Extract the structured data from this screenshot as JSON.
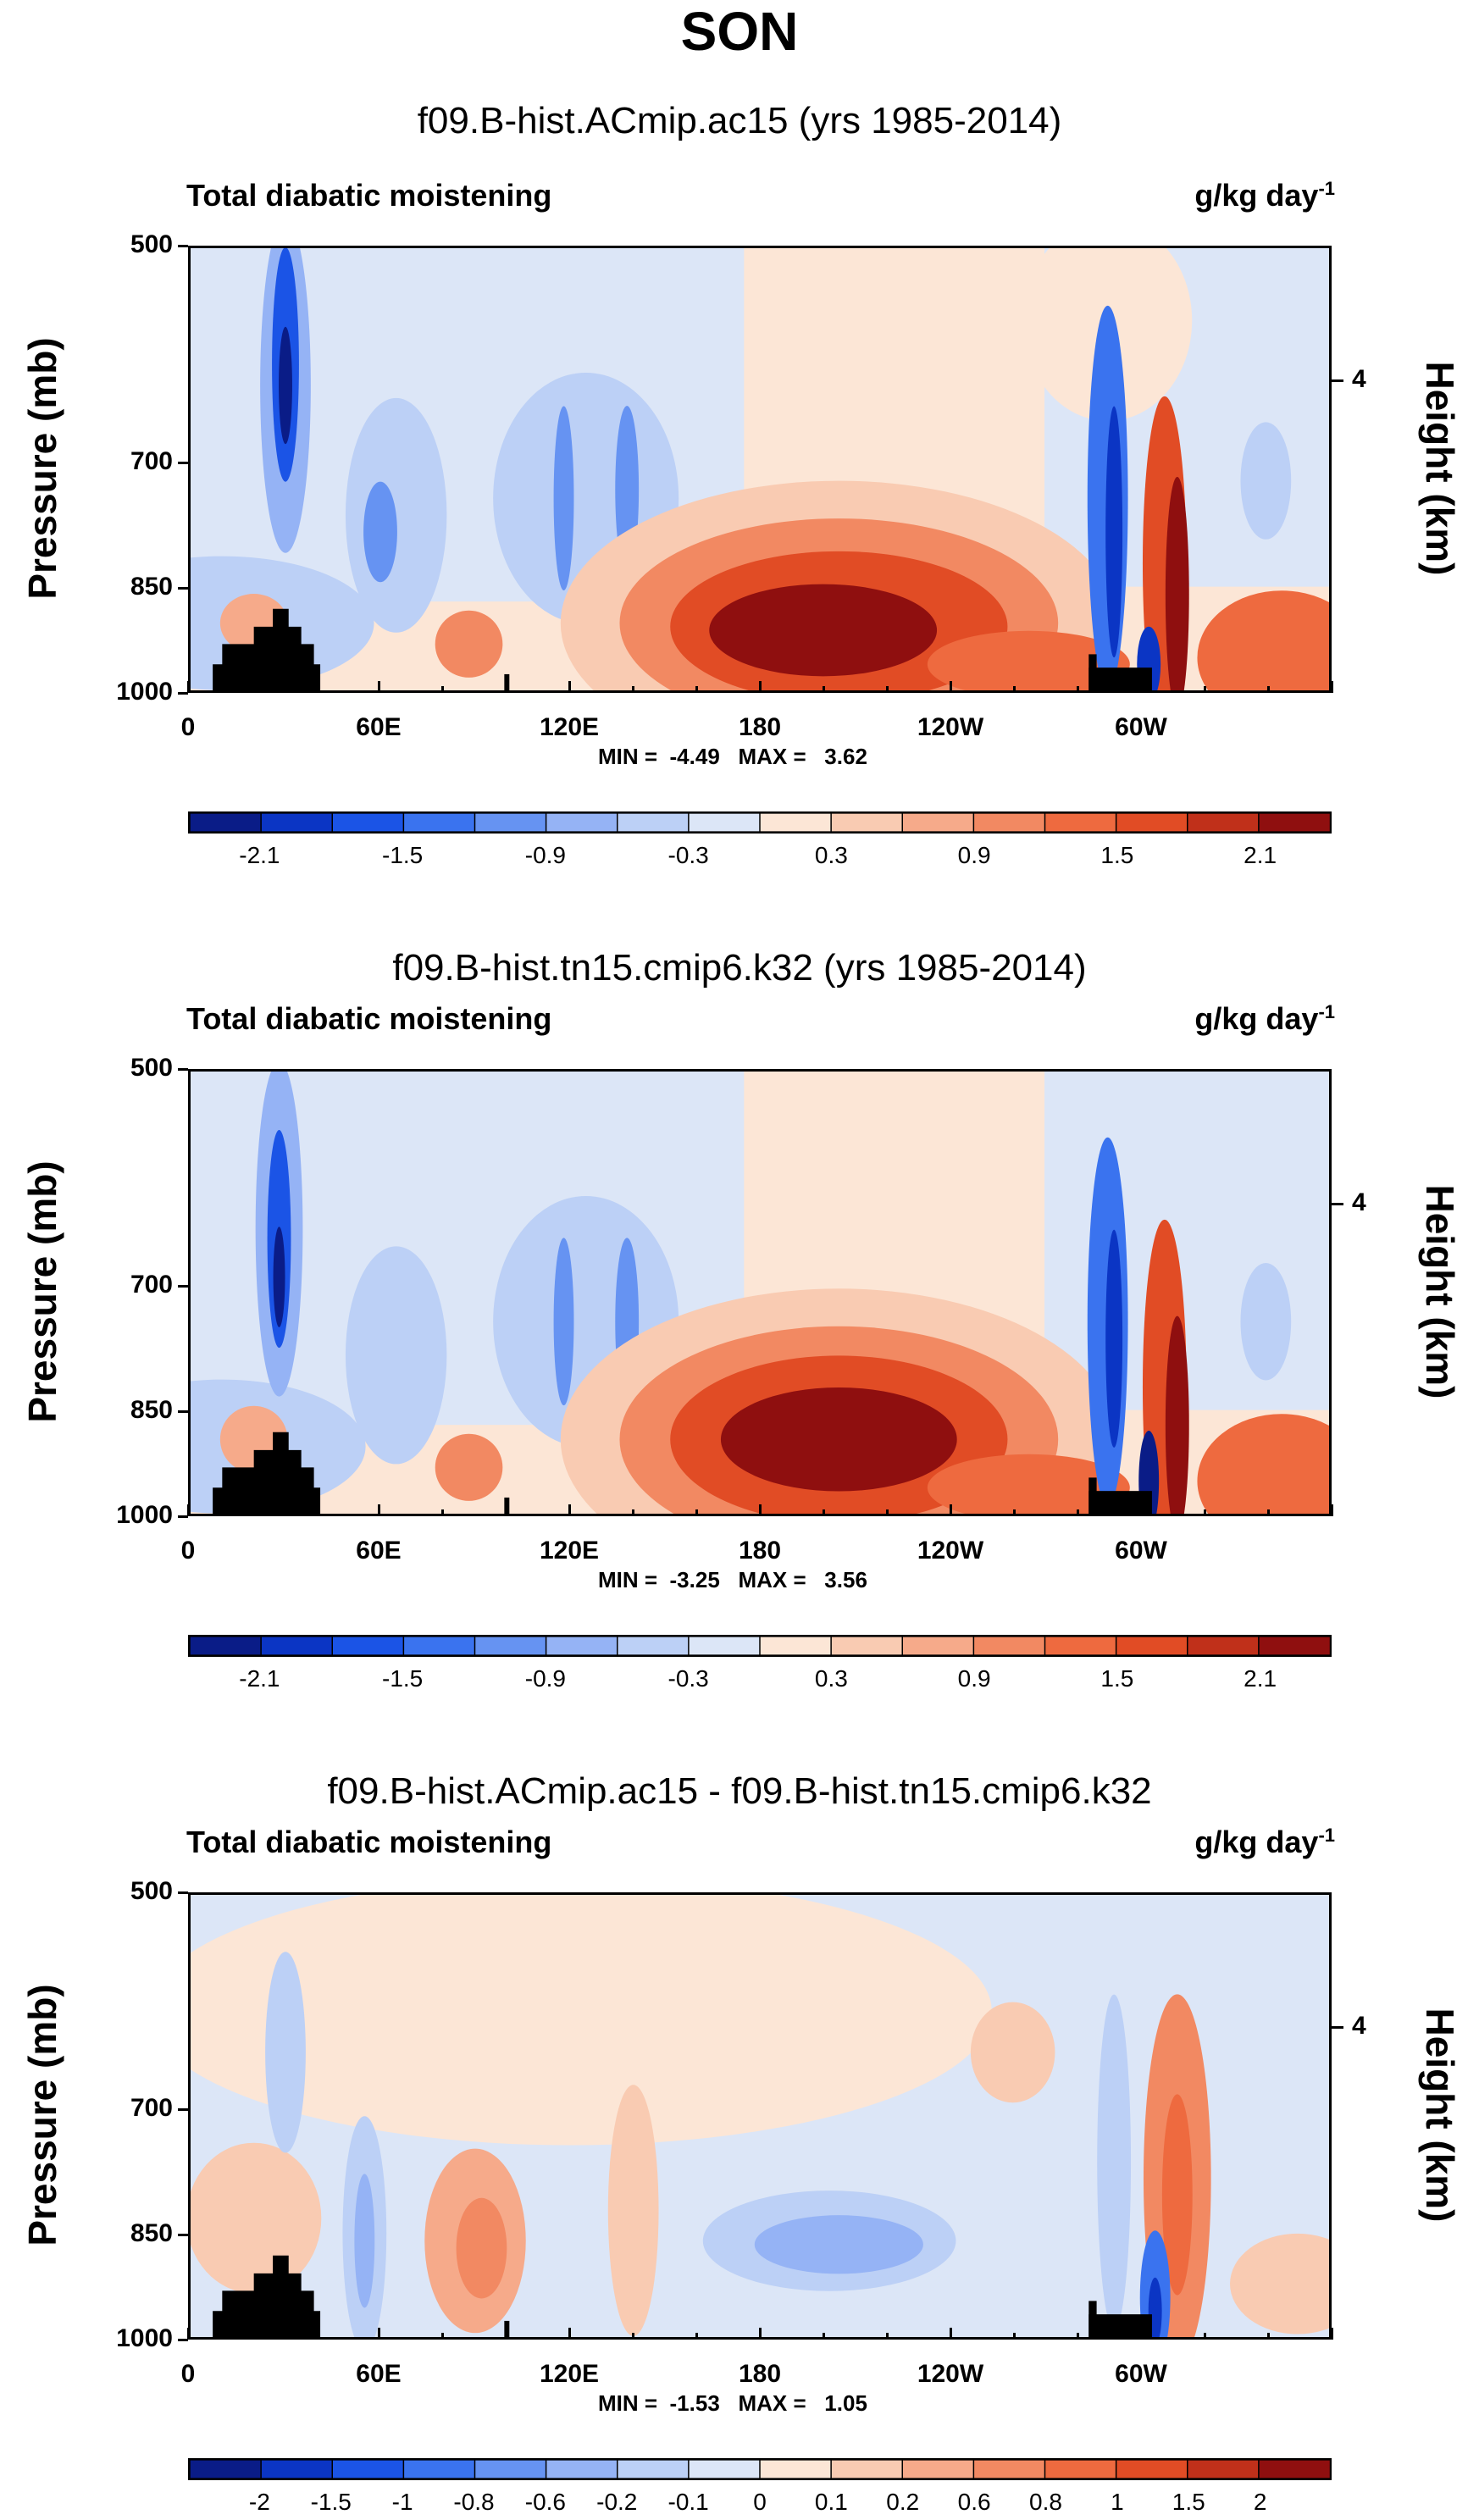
{
  "main_title": "SON",
  "chart_data": [
    {
      "type": "heatmap",
      "title": "f09.B-hist.ACmip.ac15 (yrs 1985-2014)",
      "left_label": "Total diabatic moistening",
      "units": "g/kg day",
      "units_exp": "-1",
      "ylabel": "Pressure (mb)",
      "ylabel_right": "Height (km)",
      "yticks": [
        "500",
        "700",
        "850",
        "1000"
      ],
      "yticks_right": [
        "4"
      ],
      "xticks": [
        "0",
        "60E",
        "120E",
        "180",
        "120W",
        "60W"
      ],
      "ylim": [
        1000,
        500
      ],
      "stats": "MIN =  -4.49   MAX =   3.62",
      "colorbar_labels": [
        "-2.1",
        "-1.5",
        "-0.9",
        "-0.3",
        "0.3",
        "0.9",
        "1.5",
        "2.1"
      ],
      "colorbar_colors": [
        "#0a1c87",
        "#0b35c4",
        "#1b54e6",
        "#3a73ef",
        "#6693f2",
        "#95b3f5",
        "#bcd0f6",
        "#dce6f7",
        "#fce6d6",
        "#f9cbb2",
        "#f6aa8a",
        "#f28962",
        "#ee6a3f",
        "#e14c25",
        "#c0301a",
        "#8f0f0f"
      ]
    },
    {
      "type": "heatmap",
      "title": "f09.B-hist.tn15.cmip6.k32 (yrs 1985-2014)",
      "left_label": "Total diabatic moistening",
      "units": "g/kg day",
      "units_exp": "-1",
      "ylabel": "Pressure (mb)",
      "ylabel_right": "Height (km)",
      "yticks": [
        "500",
        "700",
        "850",
        "1000"
      ],
      "yticks_right": [
        "4"
      ],
      "xticks": [
        "0",
        "60E",
        "120E",
        "180",
        "120W",
        "60W"
      ],
      "ylim": [
        1000,
        500
      ],
      "stats": "MIN =  -3.25   MAX =   3.56",
      "colorbar_labels": [
        "-2.1",
        "-1.5",
        "-0.9",
        "-0.3",
        "0.3",
        "0.9",
        "1.5",
        "2.1"
      ],
      "colorbar_colors": [
        "#0a1c87",
        "#0b35c4",
        "#1b54e6",
        "#3a73ef",
        "#6693f2",
        "#95b3f5",
        "#bcd0f6",
        "#dce6f7",
        "#fce6d6",
        "#f9cbb2",
        "#f6aa8a",
        "#f28962",
        "#ee6a3f",
        "#e14c25",
        "#c0301a",
        "#8f0f0f"
      ]
    },
    {
      "type": "heatmap",
      "title": "f09.B-hist.ACmip.ac15 - f09.B-hist.tn15.cmip6.k32",
      "left_label": "Total diabatic moistening",
      "units": "g/kg day",
      "units_exp": "-1",
      "ylabel": "Pressure (mb)",
      "ylabel_right": "Height (km)",
      "yticks": [
        "500",
        "700",
        "850",
        "1000"
      ],
      "yticks_right": [
        "4"
      ],
      "xticks": [
        "0",
        "60E",
        "120E",
        "180",
        "120W",
        "60W"
      ],
      "ylim": [
        1000,
        500
      ],
      "stats": "MIN =  -1.53   MAX =   1.05",
      "colorbar_labels": [
        "-2",
        "-1.5",
        "-1",
        "-0.8",
        "-0.6",
        "-0.2",
        "-0.1",
        "0",
        "0.1",
        "0.2",
        "0.6",
        "0.8",
        "1",
        "1.5",
        "2"
      ],
      "colorbar_colors": [
        "#0a1c87",
        "#0b35c4",
        "#1b54e6",
        "#3a73ef",
        "#6693f2",
        "#95b3f5",
        "#bcd0f6",
        "#dce6f7",
        "#fce6d6",
        "#f9cbb2",
        "#f6aa8a",
        "#f28962",
        "#ee6a3f",
        "#e14c25",
        "#c0301a",
        "#8f0f0f"
      ]
    }
  ]
}
